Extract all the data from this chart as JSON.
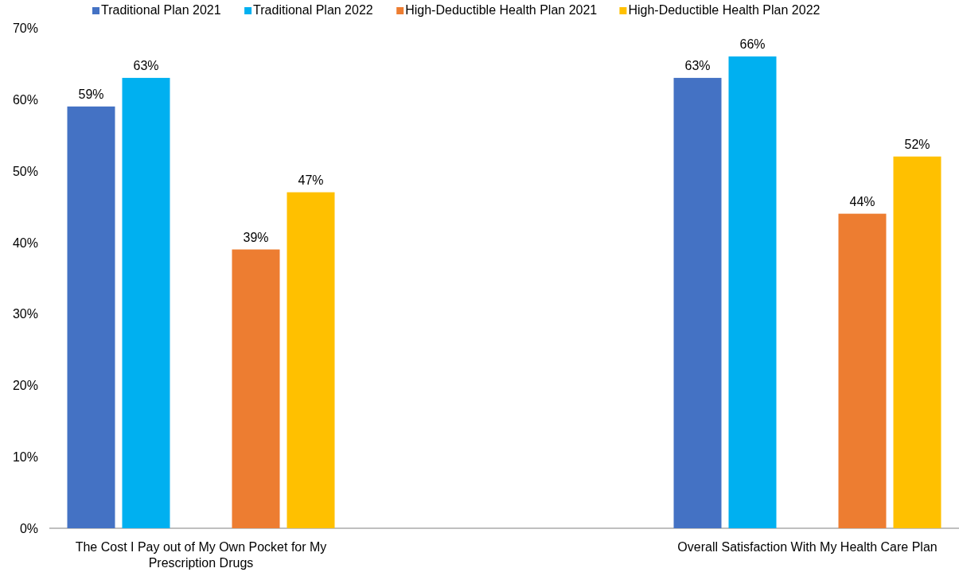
{
  "chart_data": {
    "type": "bar",
    "categories": [
      "The Cost I Pay out of My Own Pocket for My Prescription Drugs",
      "Overall Satisfaction With My Health Care Plan"
    ],
    "series": [
      {
        "name": "Traditional Plan 2021",
        "color": "#4472c4",
        "values": [
          59,
          63
        ],
        "value_labels": [
          "59%",
          "63%"
        ]
      },
      {
        "name": "Traditional Plan 2022",
        "color": "#00b0f0",
        "values": [
          63,
          66
        ],
        "value_labels": [
          "63%",
          "66%"
        ]
      },
      {
        "name": "High-Deductible Health Plan 2021",
        "color": "#ed7d31",
        "values": [
          39,
          44
        ],
        "value_labels": [
          "39%",
          "44%"
        ]
      },
      {
        "name": "High-Deductible Health Plan 2022",
        "color": "#ffc000",
        "values": [
          47,
          52
        ],
        "value_labels": [
          "47%",
          "52%"
        ]
      }
    ],
    "ylim": [
      0,
      70
    ],
    "yticks": [
      {
        "value": 0,
        "label": "0%"
      },
      {
        "value": 10,
        "label": "10%"
      },
      {
        "value": 20,
        "label": "20%"
      },
      {
        "value": 30,
        "label": "30%"
      },
      {
        "value": 40,
        "label": "40%"
      },
      {
        "value": 50,
        "label": "50%"
      },
      {
        "value": 60,
        "label": "60%"
      },
      {
        "value": 70,
        "label": "70%"
      }
    ],
    "grid": false,
    "legend": "top"
  }
}
